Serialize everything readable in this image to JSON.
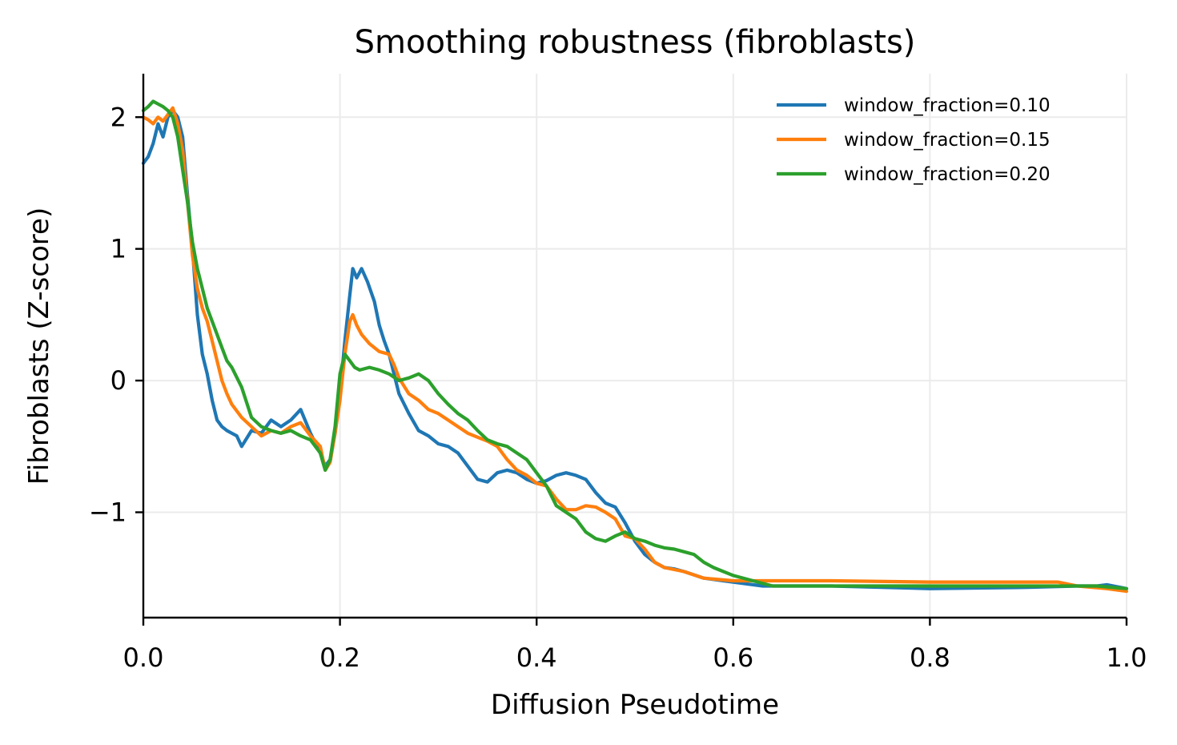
{
  "chart_data": {
    "type": "line",
    "title": "Smoothing robustness (fibroblasts)",
    "xlabel": "Diffusion Pseudotime",
    "ylabel": "Fibroblasts (Z-score)",
    "xlim": [
      0.0,
      1.0
    ],
    "ylim": [
      -1.8,
      2.33
    ],
    "xticks": [
      0.0,
      0.2,
      0.4,
      0.6,
      0.8,
      1.0
    ],
    "xtick_labels": [
      "0.0",
      "0.2",
      "0.4",
      "0.6",
      "0.8",
      "1.0"
    ],
    "yticks": [
      2,
      1,
      0,
      -1
    ],
    "ytick_labels": [
      "2",
      "1",
      "0",
      "−1"
    ],
    "grid": true,
    "legend_position": "top-right",
    "series": [
      {
        "name": "window_fraction=0.10",
        "color": "#1f77b4",
        "points": [
          [
            0.0,
            1.65
          ],
          [
            0.005,
            1.7
          ],
          [
            0.01,
            1.8
          ],
          [
            0.015,
            1.95
          ],
          [
            0.02,
            1.85
          ],
          [
            0.025,
            2.0
          ],
          [
            0.03,
            2.05
          ],
          [
            0.035,
            2.0
          ],
          [
            0.04,
            1.85
          ],
          [
            0.045,
            1.4
          ],
          [
            0.05,
            1.0
          ],
          [
            0.055,
            0.5
          ],
          [
            0.06,
            0.2
          ],
          [
            0.065,
            0.05
          ],
          [
            0.07,
            -0.15
          ],
          [
            0.075,
            -0.3
          ],
          [
            0.08,
            -0.35
          ],
          [
            0.085,
            -0.38
          ],
          [
            0.09,
            -0.4
          ],
          [
            0.095,
            -0.42
          ],
          [
            0.1,
            -0.5
          ],
          [
            0.11,
            -0.38
          ],
          [
            0.12,
            -0.4
          ],
          [
            0.13,
            -0.3
          ],
          [
            0.14,
            -0.35
          ],
          [
            0.15,
            -0.3
          ],
          [
            0.16,
            -0.22
          ],
          [
            0.17,
            -0.4
          ],
          [
            0.18,
            -0.55
          ],
          [
            0.185,
            -0.65
          ],
          [
            0.19,
            -0.6
          ],
          [
            0.195,
            -0.4
          ],
          [
            0.2,
            -0.1
          ],
          [
            0.205,
            0.3
          ],
          [
            0.21,
            0.65
          ],
          [
            0.213,
            0.85
          ],
          [
            0.217,
            0.78
          ],
          [
            0.222,
            0.85
          ],
          [
            0.228,
            0.75
          ],
          [
            0.235,
            0.6
          ],
          [
            0.24,
            0.42
          ],
          [
            0.245,
            0.3
          ],
          [
            0.25,
            0.2
          ],
          [
            0.255,
            0.05
          ],
          [
            0.26,
            -0.1
          ],
          [
            0.27,
            -0.25
          ],
          [
            0.28,
            -0.38
          ],
          [
            0.29,
            -0.42
          ],
          [
            0.3,
            -0.48
          ],
          [
            0.31,
            -0.5
          ],
          [
            0.32,
            -0.55
          ],
          [
            0.33,
            -0.65
          ],
          [
            0.34,
            -0.75
          ],
          [
            0.35,
            -0.77
          ],
          [
            0.36,
            -0.7
          ],
          [
            0.37,
            -0.68
          ],
          [
            0.38,
            -0.7
          ],
          [
            0.39,
            -0.75
          ],
          [
            0.4,
            -0.78
          ],
          [
            0.41,
            -0.76
          ],
          [
            0.42,
            -0.72
          ],
          [
            0.43,
            -0.7
          ],
          [
            0.44,
            -0.72
          ],
          [
            0.45,
            -0.75
          ],
          [
            0.46,
            -0.85
          ],
          [
            0.47,
            -0.93
          ],
          [
            0.48,
            -0.96
          ],
          [
            0.49,
            -1.08
          ],
          [
            0.5,
            -1.22
          ],
          [
            0.51,
            -1.32
          ],
          [
            0.52,
            -1.38
          ],
          [
            0.53,
            -1.42
          ],
          [
            0.54,
            -1.43
          ],
          [
            0.55,
            -1.45
          ],
          [
            0.57,
            -1.5
          ],
          [
            0.59,
            -1.52
          ],
          [
            0.61,
            -1.54
          ],
          [
            0.63,
            -1.56
          ],
          [
            0.7,
            -1.56
          ],
          [
            0.8,
            -1.58
          ],
          [
            0.9,
            -1.57
          ],
          [
            0.95,
            -1.56
          ],
          [
            0.97,
            -1.56
          ],
          [
            0.98,
            -1.55
          ],
          [
            1.0,
            -1.58
          ]
        ]
      },
      {
        "name": "window_fraction=0.15",
        "color": "#ff7f0e",
        "points": [
          [
            0.0,
            2.0
          ],
          [
            0.005,
            1.98
          ],
          [
            0.01,
            1.95
          ],
          [
            0.015,
            2.0
          ],
          [
            0.02,
            1.97
          ],
          [
            0.025,
            2.02
          ],
          [
            0.03,
            2.07
          ],
          [
            0.035,
            1.95
          ],
          [
            0.04,
            1.75
          ],
          [
            0.045,
            1.35
          ],
          [
            0.05,
            0.95
          ],
          [
            0.055,
            0.7
          ],
          [
            0.06,
            0.55
          ],
          [
            0.065,
            0.45
          ],
          [
            0.07,
            0.3
          ],
          [
            0.075,
            0.15
          ],
          [
            0.08,
            0.0
          ],
          [
            0.085,
            -0.1
          ],
          [
            0.09,
            -0.18
          ],
          [
            0.1,
            -0.28
          ],
          [
            0.11,
            -0.35
          ],
          [
            0.12,
            -0.42
          ],
          [
            0.13,
            -0.38
          ],
          [
            0.14,
            -0.4
          ],
          [
            0.15,
            -0.35
          ],
          [
            0.16,
            -0.32
          ],
          [
            0.17,
            -0.42
          ],
          [
            0.18,
            -0.5
          ],
          [
            0.185,
            -0.68
          ],
          [
            0.19,
            -0.62
          ],
          [
            0.195,
            -0.4
          ],
          [
            0.2,
            -0.15
          ],
          [
            0.205,
            0.2
          ],
          [
            0.21,
            0.45
          ],
          [
            0.213,
            0.5
          ],
          [
            0.217,
            0.42
          ],
          [
            0.222,
            0.35
          ],
          [
            0.23,
            0.28
          ],
          [
            0.24,
            0.22
          ],
          [
            0.25,
            0.2
          ],
          [
            0.255,
            0.12
          ],
          [
            0.26,
            0.02
          ],
          [
            0.27,
            -0.1
          ],
          [
            0.28,
            -0.15
          ],
          [
            0.29,
            -0.22
          ],
          [
            0.3,
            -0.25
          ],
          [
            0.31,
            -0.3
          ],
          [
            0.32,
            -0.35
          ],
          [
            0.33,
            -0.4
          ],
          [
            0.34,
            -0.43
          ],
          [
            0.35,
            -0.46
          ],
          [
            0.36,
            -0.5
          ],
          [
            0.37,
            -0.6
          ],
          [
            0.38,
            -0.68
          ],
          [
            0.39,
            -0.72
          ],
          [
            0.4,
            -0.78
          ],
          [
            0.41,
            -0.8
          ],
          [
            0.42,
            -0.9
          ],
          [
            0.43,
            -0.98
          ],
          [
            0.44,
            -0.98
          ],
          [
            0.45,
            -0.95
          ],
          [
            0.46,
            -0.96
          ],
          [
            0.47,
            -1.0
          ],
          [
            0.48,
            -1.05
          ],
          [
            0.49,
            -1.18
          ],
          [
            0.5,
            -1.2
          ],
          [
            0.51,
            -1.28
          ],
          [
            0.52,
            -1.38
          ],
          [
            0.53,
            -1.42
          ],
          [
            0.55,
            -1.45
          ],
          [
            0.57,
            -1.5
          ],
          [
            0.6,
            -1.52
          ],
          [
            0.63,
            -1.52
          ],
          [
            0.7,
            -1.52
          ],
          [
            0.8,
            -1.53
          ],
          [
            0.9,
            -1.53
          ],
          [
            0.93,
            -1.53
          ],
          [
            0.95,
            -1.56
          ],
          [
            0.98,
            -1.58
          ],
          [
            1.0,
            -1.6
          ]
        ]
      },
      {
        "name": "window_fraction=0.20",
        "color": "#2ca02c",
        "points": [
          [
            0.0,
            2.05
          ],
          [
            0.005,
            2.08
          ],
          [
            0.01,
            2.12
          ],
          [
            0.015,
            2.1
          ],
          [
            0.02,
            2.08
          ],
          [
            0.025,
            2.05
          ],
          [
            0.03,
            2.0
          ],
          [
            0.035,
            1.85
          ],
          [
            0.04,
            1.6
          ],
          [
            0.045,
            1.35
          ],
          [
            0.05,
            1.05
          ],
          [
            0.055,
            0.85
          ],
          [
            0.06,
            0.7
          ],
          [
            0.065,
            0.55
          ],
          [
            0.07,
            0.45
          ],
          [
            0.075,
            0.35
          ],
          [
            0.08,
            0.25
          ],
          [
            0.085,
            0.15
          ],
          [
            0.09,
            0.1
          ],
          [
            0.1,
            -0.05
          ],
          [
            0.11,
            -0.28
          ],
          [
            0.12,
            -0.35
          ],
          [
            0.13,
            -0.38
          ],
          [
            0.14,
            -0.4
          ],
          [
            0.15,
            -0.38
          ],
          [
            0.16,
            -0.42
          ],
          [
            0.17,
            -0.45
          ],
          [
            0.18,
            -0.55
          ],
          [
            0.185,
            -0.68
          ],
          [
            0.19,
            -0.6
          ],
          [
            0.195,
            -0.35
          ],
          [
            0.2,
            0.05
          ],
          [
            0.205,
            0.2
          ],
          [
            0.21,
            0.15
          ],
          [
            0.215,
            0.1
          ],
          [
            0.22,
            0.08
          ],
          [
            0.23,
            0.1
          ],
          [
            0.24,
            0.08
          ],
          [
            0.25,
            0.05
          ],
          [
            0.26,
            0.0
          ],
          [
            0.27,
            0.02
          ],
          [
            0.28,
            0.05
          ],
          [
            0.29,
            0.0
          ],
          [
            0.3,
            -0.1
          ],
          [
            0.31,
            -0.18
          ],
          [
            0.32,
            -0.25
          ],
          [
            0.33,
            -0.3
          ],
          [
            0.34,
            -0.38
          ],
          [
            0.35,
            -0.45
          ],
          [
            0.36,
            -0.48
          ],
          [
            0.37,
            -0.5
          ],
          [
            0.38,
            -0.55
          ],
          [
            0.39,
            -0.6
          ],
          [
            0.4,
            -0.7
          ],
          [
            0.41,
            -0.8
          ],
          [
            0.42,
            -0.95
          ],
          [
            0.43,
            -1.0
          ],
          [
            0.44,
            -1.05
          ],
          [
            0.45,
            -1.15
          ],
          [
            0.46,
            -1.2
          ],
          [
            0.47,
            -1.22
          ],
          [
            0.48,
            -1.18
          ],
          [
            0.49,
            -1.15
          ],
          [
            0.5,
            -1.2
          ],
          [
            0.51,
            -1.22
          ],
          [
            0.52,
            -1.25
          ],
          [
            0.53,
            -1.27
          ],
          [
            0.54,
            -1.28
          ],
          [
            0.55,
            -1.3
          ],
          [
            0.56,
            -1.32
          ],
          [
            0.57,
            -1.38
          ],
          [
            0.58,
            -1.42
          ],
          [
            0.6,
            -1.48
          ],
          [
            0.62,
            -1.52
          ],
          [
            0.64,
            -1.56
          ],
          [
            0.7,
            -1.56
          ],
          [
            0.8,
            -1.56
          ],
          [
            0.9,
            -1.56
          ],
          [
            0.95,
            -1.56
          ],
          [
            0.97,
            -1.56
          ],
          [
            1.0,
            -1.58
          ]
        ]
      }
    ]
  }
}
